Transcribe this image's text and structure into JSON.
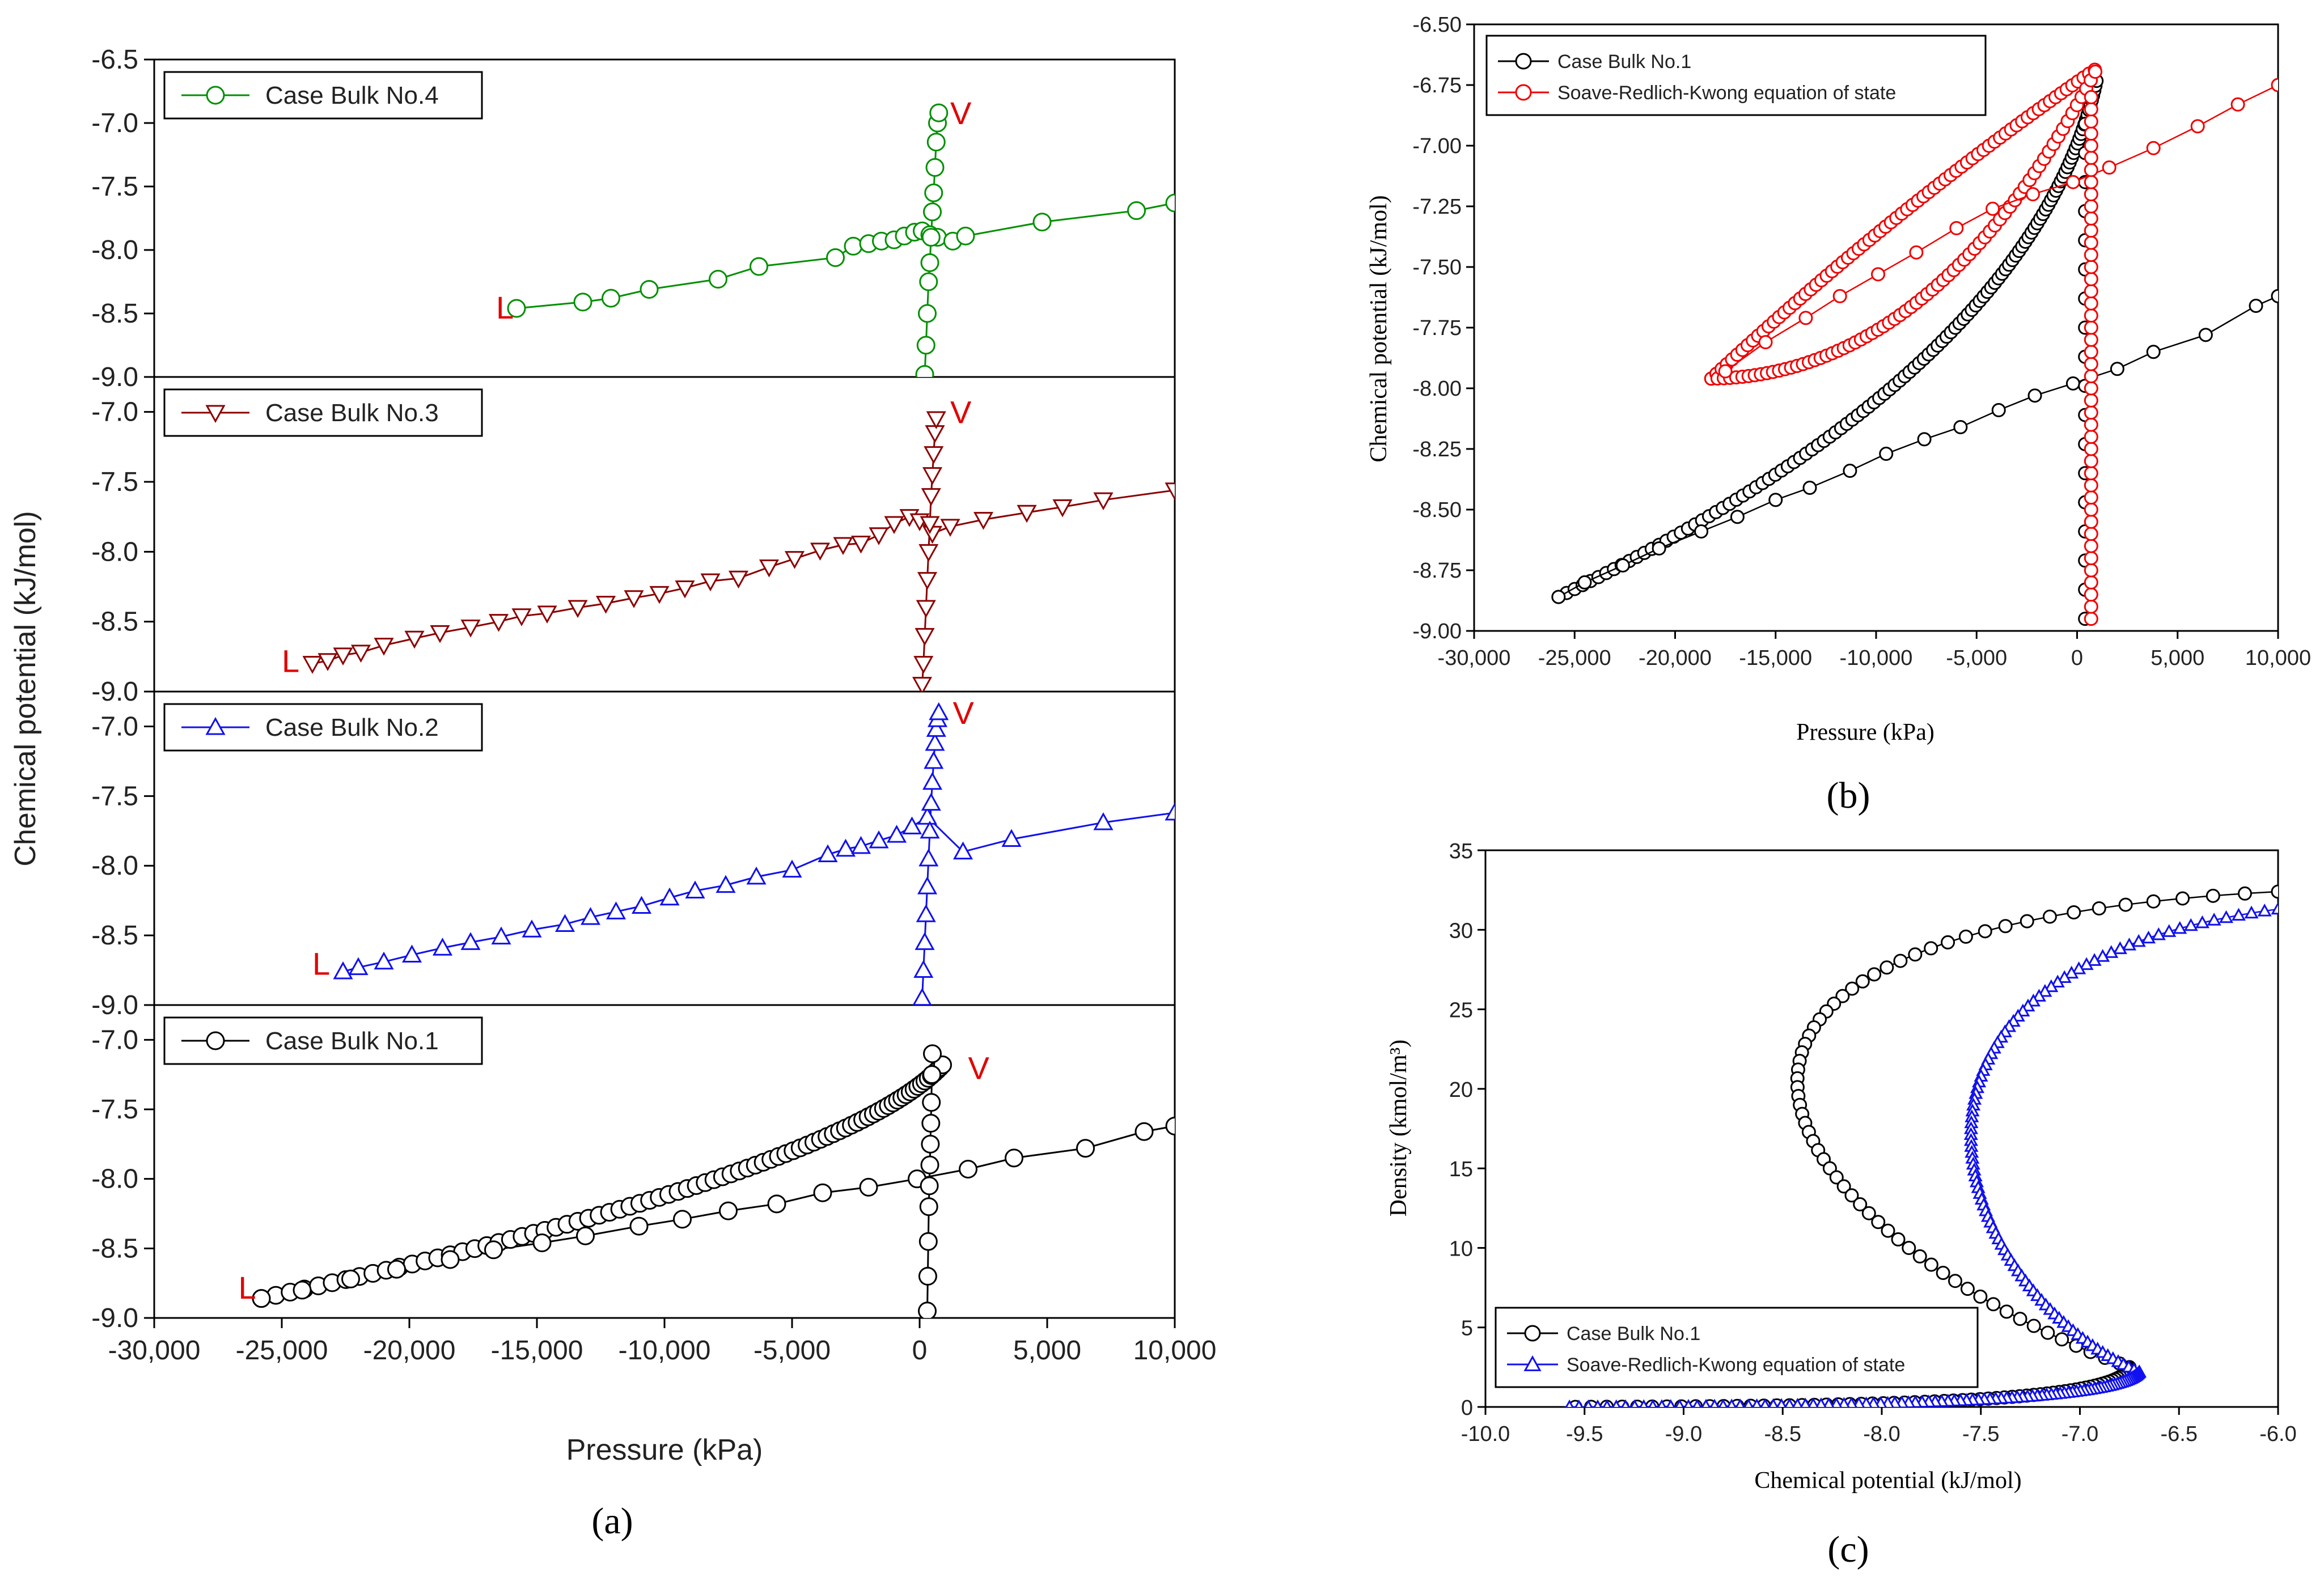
{
  "colors": {
    "bulk1": "#000000",
    "bulk2": "#1010f0",
    "bulk3": "#8b0000",
    "bulk4": "#009000",
    "srk_b": "#f00000",
    "srk_c": "#1010f0",
    "lv_label": "#e00000"
  },
  "panel_labels": {
    "a": "(a)",
    "b": "(b)",
    "c": "(c)"
  },
  "chart_data": [
    {
      "id": "a",
      "type": "line",
      "subpanels": [
        {
          "id": "a4",
          "series": [
            {
              "name": "Case Bulk No.4",
              "marker": "circle",
              "color_key": "bulk4",
              "x": [
                -15800,
                -13200,
                -12100,
                -10600,
                -7900,
                -6300,
                -3300,
                -2600,
                -2000,
                -1500,
                -1000,
                -600,
                -200,
                100,
                400,
                700,
                1300,
                1800,
                4800,
                8500,
                10000
              ],
              "y": [
                -8.46,
                -8.41,
                -8.38,
                -8.31,
                -8.23,
                -8.13,
                -8.06,
                -7.97,
                -7.95,
                -7.93,
                -7.92,
                -7.89,
                -7.86,
                -7.85,
                -7.88,
                -7.9,
                -7.93,
                -7.89,
                -7.78,
                -7.69,
                -7.63
              ]
            }
          ],
          "vertical": {
            "x": [
              200,
              250,
              300,
              350,
              400,
              450,
              500,
              550,
              600,
              650,
              700,
              750
            ],
            "y": [
              -8.98,
              -8.75,
              -8.5,
              -8.25,
              -8.1,
              -7.9,
              -7.7,
              -7.55,
              -7.35,
              -7.15,
              -7.0,
              -6.92
            ]
          },
          "annotations": [
            {
              "text": "L",
              "x": -16600,
              "y": -8.45
            },
            {
              "text": "V",
              "x": 1200,
              "y": -6.92
            }
          ],
          "yticks": [
            "-6.5",
            "-7.0",
            "-7.5",
            "-8.0",
            "-8.5",
            "-9.0"
          ]
        },
        {
          "id": "a3",
          "series": [
            {
              "name": "Case Bulk No.3",
              "marker": "triangle-down",
              "color_key": "bulk3",
              "x": [
                -23800,
                -23200,
                -22600,
                -21900,
                -21000,
                -19800,
                -18800,
                -17600,
                -16500,
                -15600,
                -14600,
                -13400,
                -12300,
                -11200,
                -10200,
                -9200,
                -8200,
                -7100,
                -5900,
                -4900,
                -3900,
                -3000,
                -2300,
                -1600,
                -1000,
                -400,
                0,
                500,
                1200,
                2500,
                4200,
                5600,
                7200,
                10000
              ],
              "y": [
                -8.8,
                -8.78,
                -8.74,
                -8.72,
                -8.67,
                -8.62,
                -8.58,
                -8.54,
                -8.5,
                -8.46,
                -8.44,
                -8.4,
                -8.37,
                -8.33,
                -8.3,
                -8.26,
                -8.21,
                -8.19,
                -8.11,
                -8.05,
                -7.99,
                -7.95,
                -7.94,
                -7.88,
                -7.8,
                -7.75,
                -7.78,
                -7.87,
                -7.82,
                -7.77,
                -7.72,
                -7.68,
                -7.63,
                -7.56
              ]
            }
          ],
          "vertical": {
            "x": [
              100,
              150,
              200,
              250,
              300,
              350,
              400,
              450,
              500,
              550,
              600,
              650
            ],
            "y": [
              -8.95,
              -8.8,
              -8.6,
              -8.4,
              -8.2,
              -8.0,
              -7.8,
              -7.6,
              -7.45,
              -7.3,
              -7.15,
              -7.05
            ]
          },
          "annotations": [
            {
              "text": "L",
              "x": -25000,
              "y": -8.78
            },
            {
              "text": "V",
              "x": 1200,
              "y": -7.0
            }
          ],
          "yticks": [
            "-7.0",
            "-7.5",
            "-8.0",
            "-8.5",
            "-9.0"
          ]
        },
        {
          "id": "a2",
          "series": [
            {
              "name": "Case Bulk No.2",
              "marker": "triangle-up",
              "color_key": "bulk2",
              "x": [
                -22600,
                -22000,
                -21000,
                -19900,
                -18700,
                -17600,
                -16400,
                -15200,
                -13900,
                -12900,
                -11900,
                -10900,
                -9800,
                -8800,
                -7600,
                -6400,
                -5000,
                -3600,
                -2900,
                -2300,
                -1600,
                -900,
                -300,
                300,
                1700,
                3600,
                7200,
                10000
              ],
              "y": [
                -8.76,
                -8.73,
                -8.69,
                -8.64,
                -8.59,
                -8.55,
                -8.51,
                -8.46,
                -8.42,
                -8.37,
                -8.33,
                -8.29,
                -8.23,
                -8.18,
                -8.14,
                -8.08,
                -8.03,
                -7.92,
                -7.88,
                -7.86,
                -7.82,
                -7.78,
                -7.72,
                -7.65,
                -7.9,
                -7.81,
                -7.69,
                -7.62
              ]
            }
          ],
          "vertical": {
            "x": [
              100,
              150,
              200,
              250,
              300,
              350,
              400,
              450,
              500,
              550,
              600,
              650,
              700,
              750
            ],
            "y": [
              -8.95,
              -8.75,
              -8.55,
              -8.35,
              -8.15,
              -7.95,
              -7.75,
              -7.55,
              -7.4,
              -7.25,
              -7.12,
              -7.02,
              -6.95,
              -6.9
            ]
          },
          "annotations": [
            {
              "text": "L",
              "x": -23800,
              "y": -8.7
            },
            {
              "text": "V",
              "x": 1300,
              "y": -6.9
            }
          ],
          "yticks": [
            "-7.0",
            "-7.5",
            "-8.0",
            "-8.5",
            "-9.0"
          ]
        },
        {
          "id": "a1",
          "series": [
            {
              "name": "Case Bulk No.1",
              "marker": "circle",
              "color_key": "bulk1",
              "x": [
                -25800,
                -24200,
                -22300,
                -20500,
                -18400,
                -16700,
                -14800,
                -13100,
                -11000,
                -9300,
                -7500,
                -5600,
                -3800,
                -2000,
                -100,
                1900,
                3700,
                6500,
                8800,
                10000
              ],
              "y": [
                -8.86,
                -8.8,
                -8.72,
                -8.65,
                -8.58,
                -8.51,
                -8.46,
                -8.41,
                -8.34,
                -8.29,
                -8.23,
                -8.18,
                -8.1,
                -8.06,
                -8.0,
                -7.93,
                -7.85,
                -7.78,
                -7.66,
                -7.62
              ]
            }
          ],
          "vertical": {
            "x": [
              300,
              320,
              340,
              360,
              380,
              400,
              420,
              440,
              460,
              480,
              500
            ],
            "y": [
              -8.95,
              -8.7,
              -8.45,
              -8.2,
              -8.05,
              -7.9,
              -7.75,
              -7.6,
              -7.45,
              -7.25,
              -7.1
            ]
          },
          "annotations": [
            {
              "text": "L",
              "x": -26700,
              "y": -8.78
            },
            {
              "text": "V",
              "x": 1900,
              "y": -7.2
            }
          ],
          "yticks": [
            "-7.0",
            "-7.5",
            "-8.0",
            "-8.5",
            "-9.0"
          ]
        }
      ],
      "dense_curve": {
        "x_start": -25800,
        "y_start": -8.86,
        "x_end": 900,
        "y_end": -7.18
      },
      "xlabel": "Pressure (kPa)",
      "ylabel": "Chemical potential (kJ/mol)",
      "xlim": [
        -30000,
        10000
      ],
      "xticks": [
        "-30,000",
        "-25,000",
        "-20,000",
        "-15,000",
        "-10,000",
        "-5,000",
        "0",
        "5,000",
        "10,000"
      ]
    },
    {
      "id": "b",
      "type": "line",
      "series": [
        {
          "name": "Case Bulk No.1",
          "marker": "circle",
          "color_key": "bulk1",
          "x": [
            -25800,
            -24500,
            -22600,
            -20800,
            -18700,
            -16900,
            -15000,
            -13300,
            -11300,
            -9500,
            -7600,
            -5800,
            -3900,
            -2100,
            -200,
            2000,
            3800,
            6400,
            8900,
            10000
          ],
          "y": [
            -8.86,
            -8.8,
            -8.73,
            -8.66,
            -8.59,
            -8.53,
            -8.46,
            -8.41,
            -8.34,
            -8.27,
            -8.21,
            -8.16,
            -8.09,
            -8.03,
            -7.98,
            -7.92,
            -7.85,
            -7.78,
            -7.66,
            -7.62
          ]
        },
        {
          "name": "Soave-Redlich-Kwong equation of state",
          "marker": "circle",
          "color_key": "srk_b",
          "x": [
            -17500,
            -15500,
            -13500,
            -11800,
            -9900,
            -8000,
            -6000,
            -4200,
            -2200,
            -200,
            1600,
            3800,
            6000,
            8000,
            10000
          ],
          "y": [
            -7.93,
            -7.81,
            -7.71,
            -7.62,
            -7.53,
            -7.44,
            -7.34,
            -7.26,
            -7.2,
            -7.15,
            -7.09,
            -7.01,
            -6.92,
            -6.83,
            -6.75
          ]
        }
      ],
      "xlabel": "Pressure (kPa)",
      "ylabel": "Chemical potential (kJ/mol)",
      "xlim": [
        -30000,
        10000
      ],
      "ylim": [
        -9.0,
        -6.5
      ],
      "xticks": [
        "-30,000",
        "-25,000",
        "-20,000",
        "-15,000",
        "-10,000",
        "-5,000",
        "0",
        "5,000",
        "10,000"
      ],
      "yticks": [
        "-6.50",
        "-6.75",
        "-7.00",
        "-7.25",
        "-7.50",
        "-7.75",
        "-8.00",
        "-8.25",
        "-8.50",
        "-8.75",
        "-9.00"
      ]
    },
    {
      "id": "c",
      "type": "line",
      "series": [
        {
          "name": "Case Bulk No.1",
          "marker": "circle",
          "color_key": "bulk1"
        },
        {
          "name": "Soave-Redlich-Kwong equation of state",
          "marker": "triangle-up",
          "color_key": "srk_c"
        }
      ],
      "xlabel": "Chemical potential (kJ/mol)",
      "ylabel": "Density (kmol/m³)",
      "xlim": [
        -10.0,
        -6.0
      ],
      "ylim": [
        0,
        35
      ],
      "xticks": [
        "-10.0",
        "-9.5",
        "-9.0",
        "-8.5",
        "-8.0",
        "-7.5",
        "-7.0",
        "-6.5",
        "-6.0"
      ],
      "yticks": [
        "0",
        "5",
        "10",
        "15",
        "20",
        "25",
        "30",
        "35"
      ]
    }
  ]
}
